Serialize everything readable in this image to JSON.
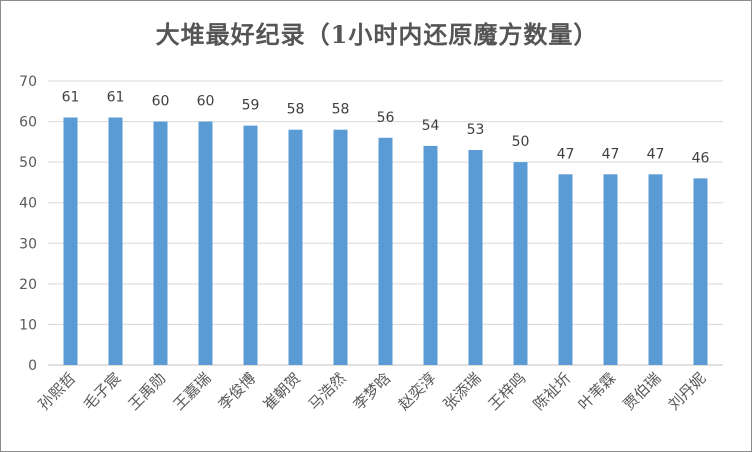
{
  "chart_data": {
    "type": "bar",
    "title": "大堆最好纪录（1小时内还原魔方数量）",
    "xlabel": "",
    "ylabel": "",
    "ylim": [
      0,
      70
    ],
    "yticks": [
      0,
      10,
      20,
      30,
      40,
      50,
      60,
      70
    ],
    "grid": true,
    "legend": "none",
    "bar_color": "#5b9bd5",
    "grid_color": "#d9d9d9",
    "categories": [
      "孙熙哲",
      "毛子宸",
      "王禹勋",
      "王嘉瑞",
      "李俊博",
      "崔朝贺",
      "马浩然",
      "李梦晗",
      "赵奕淳",
      "张添瑞",
      "王梓鸣",
      "陈祉圻",
      "叶苇霖",
      "贾伯瑞",
      "刘丹妮"
    ],
    "values": [
      61,
      61,
      60,
      60,
      59,
      58,
      58,
      56,
      54,
      53,
      50,
      47,
      47,
      47,
      46
    ]
  }
}
